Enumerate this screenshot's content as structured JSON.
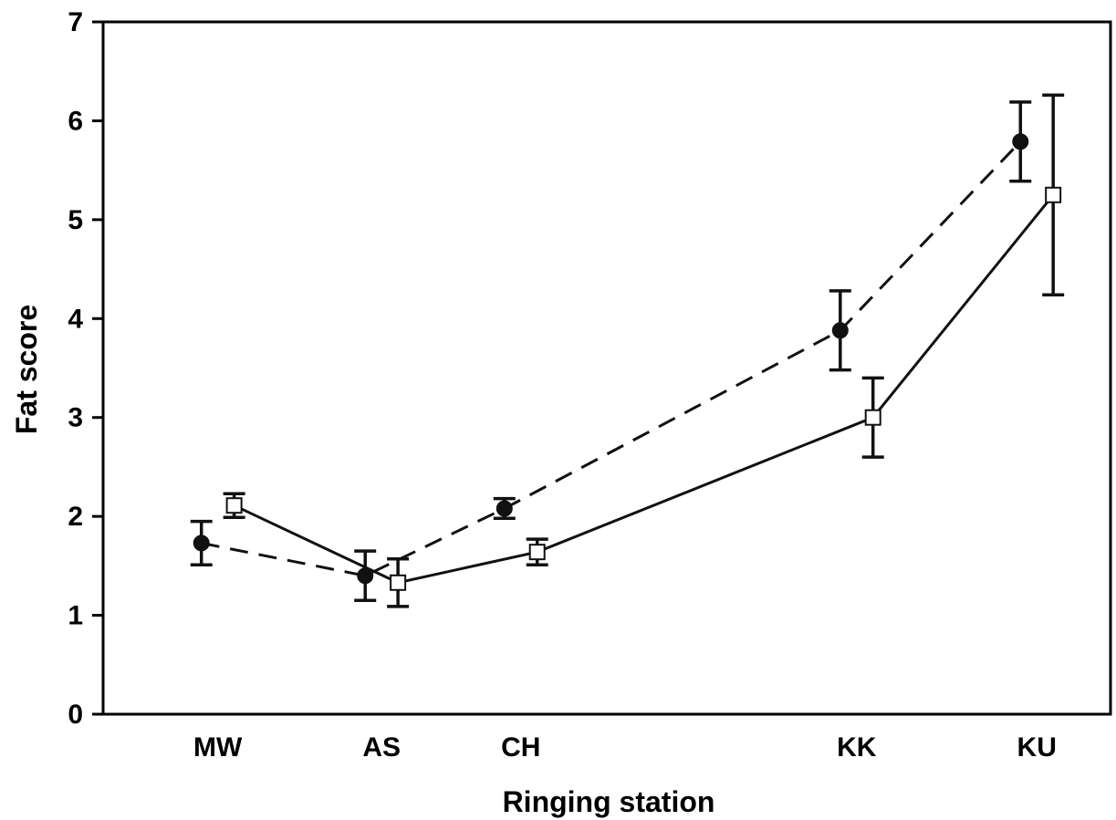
{
  "chart_data": {
    "type": "line",
    "xlabel": "Ringing station",
    "ylabel": "Fat score",
    "ylim": [
      0,
      7
    ],
    "yticks": [
      0,
      1,
      2,
      3,
      4,
      5,
      6,
      7
    ],
    "categories": [
      "MW",
      "AS",
      "CH",
      "KK",
      "KU"
    ],
    "x_positions": [
      1,
      2,
      2.85,
      4.9,
      6
    ],
    "xlim": [
      0.3,
      6.45
    ],
    "grid": false,
    "legend": "none",
    "series": [
      {
        "style": "dashed",
        "marker": "filled-circle",
        "x_offset": -0.1,
        "values": [
          1.73,
          1.4,
          2.08,
          3.88,
          5.79
        ],
        "errors": [
          0.22,
          0.25,
          0.1,
          0.4,
          0.4
        ]
      },
      {
        "style": "solid",
        "marker": "open-square",
        "x_offset": 0.1,
        "values": [
          2.11,
          1.33,
          1.64,
          3.0,
          5.25
        ],
        "errors": [
          0.12,
          0.24,
          0.13,
          0.4,
          1.01
        ]
      }
    ]
  }
}
